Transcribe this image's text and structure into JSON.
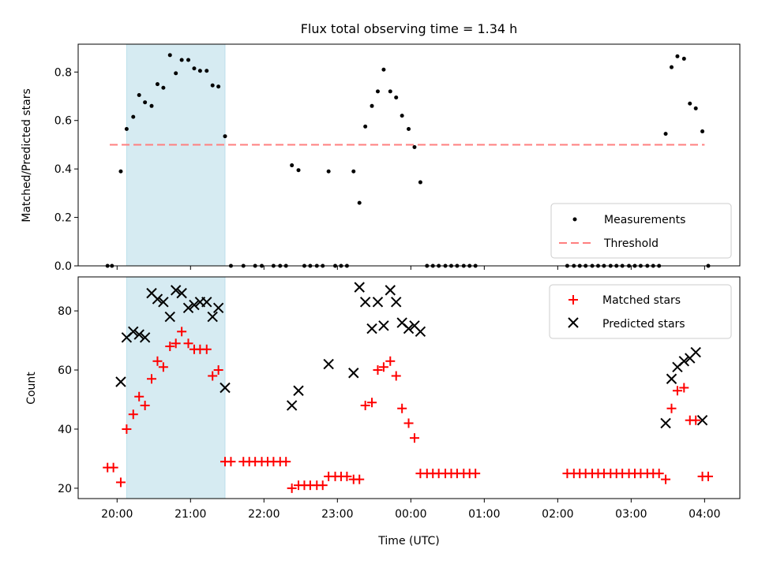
{
  "chart_data": {
    "title": "Flux total observing time = 1.34 h",
    "xlabel": "Time (UTC)",
    "x_unit": "hours from 20:00 UTC",
    "x_ticks": [
      {
        "t": 0,
        "label": "20:00"
      },
      {
        "t": 1,
        "label": "21:00"
      },
      {
        "t": 2,
        "label": "22:00"
      },
      {
        "t": 3,
        "label": "23:00"
      },
      {
        "t": 4,
        "label": "00:00"
      },
      {
        "t": 5,
        "label": "01:00"
      },
      {
        "t": 6,
        "label": "02:00"
      },
      {
        "t": 7,
        "label": "03:00"
      },
      {
        "t": 8,
        "label": "04:00"
      }
    ],
    "xlim": [
      -0.53,
      8.48
    ],
    "highlight_span": [
      0.13,
      1.47
    ],
    "top": {
      "type": "scatter",
      "ylabel": "Matched/Predicted stars",
      "ylim": [
        0,
        0.915
      ],
      "yticks": [
        "0.0",
        "0.2",
        "0.4",
        "0.6",
        "0.8"
      ],
      "threshold": {
        "value": 0.5,
        "x_range": [
          -0.1,
          8.0
        ],
        "color": "#ff7f7f"
      },
      "legend": {
        "position": "lower right",
        "entries": [
          "Measurements",
          "Threshold"
        ]
      },
      "series": [
        {
          "name": "Measurements",
          "color": "#000000",
          "points": [
            [
              -0.13,
              0
            ],
            [
              -0.07,
              0
            ],
            [
              0.05,
              0.39
            ],
            [
              0.13,
              0.565
            ],
            [
              0.22,
              0.615
            ],
            [
              0.3,
              0.705
            ],
            [
              0.38,
              0.675
            ],
            [
              0.47,
              0.66
            ],
            [
              0.55,
              0.75
            ],
            [
              0.63,
              0.735
            ],
            [
              0.72,
              0.87
            ],
            [
              0.8,
              0.795
            ],
            [
              0.88,
              0.85
            ],
            [
              0.97,
              0.85
            ],
            [
              1.05,
              0.815
            ],
            [
              1.13,
              0.805
            ],
            [
              1.22,
              0.805
            ],
            [
              1.3,
              0.745
            ],
            [
              1.38,
              0.74
            ],
            [
              1.47,
              0.535
            ],
            [
              1.55,
              0
            ],
            [
              1.72,
              0
            ],
            [
              1.88,
              0
            ],
            [
              1.97,
              0
            ],
            [
              2.13,
              0
            ],
            [
              2.22,
              0
            ],
            [
              2.3,
              0
            ],
            [
              2.38,
              0.415
            ],
            [
              2.47,
              0.395
            ],
            [
              2.55,
              0
            ],
            [
              2.63,
              0
            ],
            [
              2.72,
              0
            ],
            [
              2.8,
              0
            ],
            [
              2.88,
              0.39
            ],
            [
              2.97,
              0
            ],
            [
              3.05,
              0
            ],
            [
              3.13,
              0
            ],
            [
              3.22,
              0.39
            ],
            [
              3.3,
              0.26
            ],
            [
              3.38,
              0.575
            ],
            [
              3.47,
              0.66
            ],
            [
              3.55,
              0.72
            ],
            [
              3.63,
              0.81
            ],
            [
              3.72,
              0.72
            ],
            [
              3.8,
              0.695
            ],
            [
              3.88,
              0.62
            ],
            [
              3.97,
              0.565
            ],
            [
              4.05,
              0.49
            ],
            [
              4.13,
              0.345
            ],
            [
              4.22,
              0
            ],
            [
              4.3,
              0
            ],
            [
              4.38,
              0
            ],
            [
              4.47,
              0
            ],
            [
              4.55,
              0
            ],
            [
              4.63,
              0
            ],
            [
              4.72,
              0
            ],
            [
              4.8,
              0
            ],
            [
              4.88,
              0
            ],
            [
              6.13,
              0
            ],
            [
              6.22,
              0
            ],
            [
              6.3,
              0
            ],
            [
              6.38,
              0
            ],
            [
              6.47,
              0
            ],
            [
              6.55,
              0
            ],
            [
              6.63,
              0
            ],
            [
              6.72,
              0
            ],
            [
              6.8,
              0
            ],
            [
              6.88,
              0
            ],
            [
              6.97,
              0
            ],
            [
              7.05,
              0
            ],
            [
              7.13,
              0
            ],
            [
              7.22,
              0
            ],
            [
              7.3,
              0
            ],
            [
              7.38,
              0
            ],
            [
              7.47,
              0.545
            ],
            [
              7.55,
              0.82
            ],
            [
              7.63,
              0.865
            ],
            [
              7.72,
              0.855
            ],
            [
              7.8,
              0.67
            ],
            [
              7.88,
              0.65
            ],
            [
              7.97,
              0.555
            ],
            [
              8.05,
              0
            ]
          ]
        }
      ]
    },
    "bottom": {
      "type": "scatter",
      "ylabel": "Count",
      "ylim": [
        16.5,
        91.5
      ],
      "yticks": [
        20,
        40,
        60,
        80
      ],
      "legend": {
        "position": "upper right",
        "entries": [
          "Matched stars",
          "Predicted stars"
        ]
      },
      "series": [
        {
          "name": "Matched stars",
          "marker": "+",
          "color": "#ff0000",
          "points": [
            [
              -0.13,
              27
            ],
            [
              -0.05,
              27
            ],
            [
              0.05,
              22
            ],
            [
              0.13,
              40
            ],
            [
              0.22,
              45
            ],
            [
              0.3,
              51
            ],
            [
              0.38,
              48
            ],
            [
              0.47,
              57
            ],
            [
              0.55,
              63
            ],
            [
              0.63,
              61
            ],
            [
              0.72,
              68
            ],
            [
              0.8,
              69
            ],
            [
              0.88,
              73
            ],
            [
              0.97,
              69
            ],
            [
              1.05,
              67
            ],
            [
              1.13,
              67
            ],
            [
              1.22,
              67
            ],
            [
              1.3,
              58
            ],
            [
              1.38,
              60
            ],
            [
              1.47,
              29
            ],
            [
              1.55,
              29
            ],
            [
              1.72,
              29
            ],
            [
              1.8,
              29
            ],
            [
              1.88,
              29
            ],
            [
              1.97,
              29
            ],
            [
              2.05,
              29
            ],
            [
              2.13,
              29
            ],
            [
              2.22,
              29
            ],
            [
              2.3,
              29
            ],
            [
              2.38,
              20
            ],
            [
              2.47,
              21
            ],
            [
              2.55,
              21
            ],
            [
              2.63,
              21
            ],
            [
              2.72,
              21
            ],
            [
              2.8,
              21
            ],
            [
              2.88,
              24
            ],
            [
              2.97,
              24
            ],
            [
              3.05,
              24
            ],
            [
              3.13,
              24
            ],
            [
              3.22,
              23
            ],
            [
              3.3,
              23
            ],
            [
              3.38,
              48
            ],
            [
              3.47,
              49
            ],
            [
              3.55,
              60
            ],
            [
              3.63,
              61
            ],
            [
              3.72,
              63
            ],
            [
              3.8,
              58
            ],
            [
              3.88,
              47
            ],
            [
              3.97,
              42
            ],
            [
              4.05,
              37
            ],
            [
              4.13,
              25
            ],
            [
              4.22,
              25
            ],
            [
              4.3,
              25
            ],
            [
              4.38,
              25
            ],
            [
              4.47,
              25
            ],
            [
              4.55,
              25
            ],
            [
              4.63,
              25
            ],
            [
              4.72,
              25
            ],
            [
              4.8,
              25
            ],
            [
              4.88,
              25
            ],
            [
              6.13,
              25
            ],
            [
              6.22,
              25
            ],
            [
              6.3,
              25
            ],
            [
              6.38,
              25
            ],
            [
              6.47,
              25
            ],
            [
              6.55,
              25
            ],
            [
              6.63,
              25
            ],
            [
              6.72,
              25
            ],
            [
              6.8,
              25
            ],
            [
              6.88,
              25
            ],
            [
              6.97,
              25
            ],
            [
              7.05,
              25
            ],
            [
              7.13,
              25
            ],
            [
              7.22,
              25
            ],
            [
              7.3,
              25
            ],
            [
              7.38,
              25
            ],
            [
              7.47,
              23
            ],
            [
              7.55,
              47
            ],
            [
              7.63,
              53
            ],
            [
              7.72,
              54
            ],
            [
              7.8,
              43
            ],
            [
              7.88,
              43
            ],
            [
              7.97,
              24
            ],
            [
              8.05,
              24
            ]
          ]
        },
        {
          "name": "Predicted stars",
          "marker": "x",
          "color": "#000000",
          "points": [
            [
              0.05,
              56
            ],
            [
              0.13,
              71
            ],
            [
              0.22,
              73
            ],
            [
              0.3,
              72
            ],
            [
              0.38,
              71
            ],
            [
              0.47,
              86
            ],
            [
              0.55,
              84
            ],
            [
              0.63,
              83
            ],
            [
              0.72,
              78
            ],
            [
              0.8,
              87
            ],
            [
              0.88,
              86
            ],
            [
              0.97,
              81
            ],
            [
              1.05,
              82
            ],
            [
              1.13,
              83
            ],
            [
              1.22,
              83
            ],
            [
              1.3,
              78
            ],
            [
              1.38,
              81
            ],
            [
              1.47,
              54
            ],
            [
              2.38,
              48
            ],
            [
              2.47,
              53
            ],
            [
              2.88,
              62
            ],
            [
              3.22,
              59
            ],
            [
              3.3,
              88
            ],
            [
              3.38,
              83
            ],
            [
              3.47,
              74
            ],
            [
              3.55,
              83
            ],
            [
              3.63,
              75
            ],
            [
              3.72,
              87
            ],
            [
              3.8,
              83
            ],
            [
              3.88,
              76
            ],
            [
              3.97,
              74
            ],
            [
              4.05,
              75
            ],
            [
              4.13,
              73
            ],
            [
              7.47,
              42
            ],
            [
              7.55,
              57
            ],
            [
              7.63,
              61
            ],
            [
              7.72,
              63
            ],
            [
              7.8,
              64
            ],
            [
              7.88,
              66
            ],
            [
              7.97,
              43
            ]
          ]
        }
      ]
    }
  }
}
